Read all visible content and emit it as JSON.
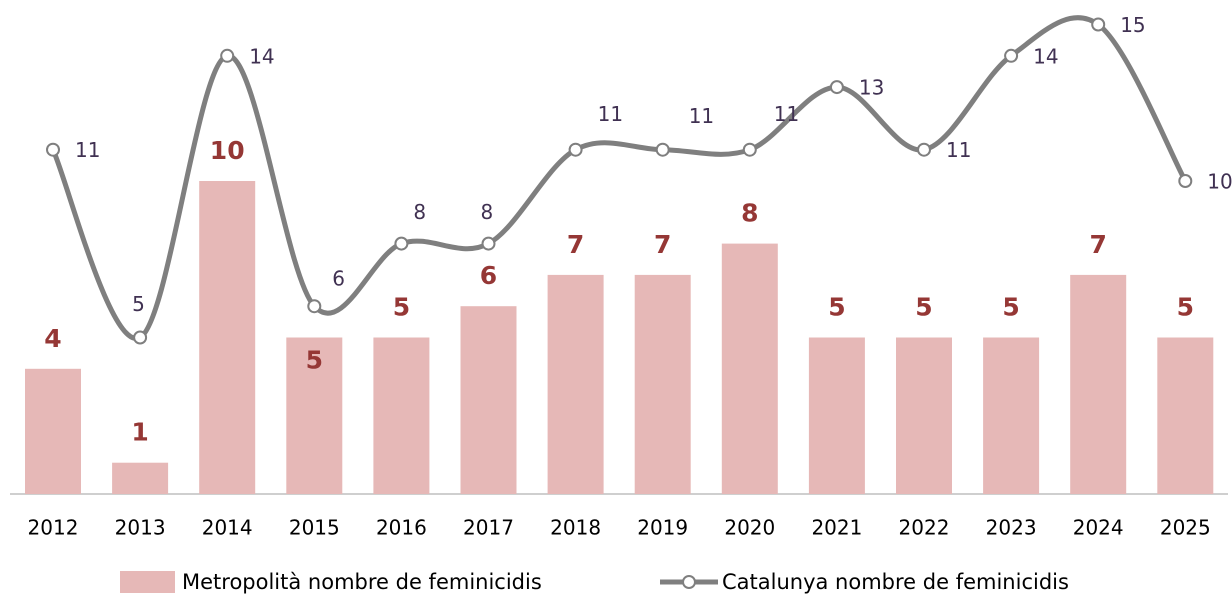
{
  "chart_data": {
    "type": "bar-line",
    "categories": [
      "2012",
      "2013",
      "2014",
      "2015",
      "2016",
      "2017",
      "2018",
      "2019",
      "2020",
      "2021",
      "2022",
      "2023",
      "2024",
      "2025"
    ],
    "series": [
      {
        "name": "Metropolità nombre de feminicidis",
        "type": "bar",
        "color": "#e6b8b7",
        "label_color": "#953735",
        "values": [
          4,
          1,
          10,
          5,
          5,
          6,
          7,
          7,
          8,
          5,
          5,
          5,
          7,
          5
        ]
      },
      {
        "name": "Catalunya nombre de feminicidis",
        "type": "line",
        "color": "#7f7f7f",
        "label_color": "#403152",
        "values": [
          11,
          5,
          14,
          6,
          8,
          8,
          11,
          11,
          11,
          13,
          11,
          14,
          15,
          10
        ]
      }
    ],
    "ylim": [
      0,
      16
    ]
  }
}
